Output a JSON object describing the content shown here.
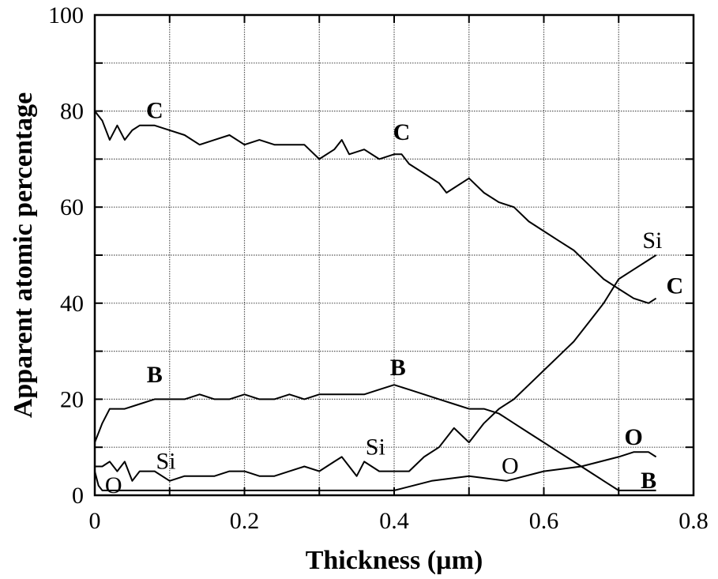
{
  "chart_data": {
    "type": "line",
    "xlabel": "Thickness (µm)",
    "ylabel": "Apparent atomic percentage",
    "xlim": [
      0,
      0.8
    ],
    "ylim": [
      0,
      100
    ],
    "xticks": [
      0,
      0.2,
      0.4,
      0.6,
      0.8
    ],
    "xtick_labels": [
      "0",
      "0.2",
      "0.4",
      "0.6",
      "0.8"
    ],
    "yticks": [
      0,
      20,
      40,
      60,
      80,
      100
    ],
    "ytick_labels": [
      "0",
      "20",
      "40",
      "60",
      "80",
      "100"
    ],
    "grid": true,
    "series": [
      {
        "name": "C",
        "x": [
          0,
          0.01,
          0.02,
          0.03,
          0.04,
          0.05,
          0.06,
          0.08,
          0.1,
          0.12,
          0.14,
          0.16,
          0.18,
          0.2,
          0.22,
          0.24,
          0.26,
          0.28,
          0.3,
          0.32,
          0.33,
          0.34,
          0.36,
          0.38,
          0.4,
          0.41,
          0.42,
          0.44,
          0.46,
          0.47,
          0.48,
          0.5,
          0.52,
          0.54,
          0.56,
          0.58,
          0.6,
          0.62,
          0.64,
          0.66,
          0.68,
          0.7,
          0.72,
          0.74,
          0.75
        ],
        "y": [
          80,
          78,
          74,
          77,
          74,
          76,
          77,
          77,
          76,
          75,
          73,
          74,
          75,
          73,
          74,
          73,
          73,
          73,
          70,
          72,
          74,
          71,
          72,
          70,
          71,
          71,
          69,
          67,
          65,
          63,
          64,
          66,
          63,
          61,
          60,
          57,
          55,
          53,
          51,
          48,
          45,
          43,
          41,
          40,
          41
        ]
      },
      {
        "name": "B",
        "x": [
          0,
          0.01,
          0.02,
          0.04,
          0.06,
          0.08,
          0.1,
          0.12,
          0.14,
          0.16,
          0.18,
          0.2,
          0.22,
          0.24,
          0.26,
          0.28,
          0.3,
          0.32,
          0.34,
          0.36,
          0.38,
          0.4,
          0.42,
          0.44,
          0.46,
          0.48,
          0.5,
          0.52,
          0.54,
          0.56,
          0.58,
          0.6,
          0.62,
          0.64,
          0.66,
          0.68,
          0.7,
          0.72,
          0.74,
          0.75
        ],
        "y": [
          11,
          15,
          18,
          18,
          19,
          20,
          20,
          20,
          21,
          20,
          20,
          21,
          20,
          20,
          21,
          20,
          21,
          21,
          21,
          21,
          22,
          23,
          22,
          21,
          20,
          19,
          18,
          18,
          17,
          15,
          13,
          11,
          9,
          7,
          5,
          3,
          1,
          1,
          1,
          1
        ]
      },
      {
        "name": "Si",
        "x": [
          0,
          0.01,
          0.02,
          0.03,
          0.04,
          0.05,
          0.06,
          0.08,
          0.1,
          0.12,
          0.14,
          0.16,
          0.18,
          0.2,
          0.22,
          0.24,
          0.26,
          0.28,
          0.3,
          0.32,
          0.33,
          0.34,
          0.35,
          0.36,
          0.38,
          0.4,
          0.42,
          0.44,
          0.46,
          0.48,
          0.5,
          0.52,
          0.54,
          0.56,
          0.58,
          0.6,
          0.62,
          0.64,
          0.66,
          0.68,
          0.7,
          0.72,
          0.74,
          0.75
        ],
        "y": [
          6,
          6,
          7,
          5,
          7,
          3,
          5,
          5,
          3,
          4,
          4,
          4,
          5,
          5,
          4,
          4,
          5,
          6,
          5,
          7,
          8,
          6,
          4,
          7,
          5,
          5,
          5,
          8,
          10,
          14,
          11,
          15,
          18,
          20,
          23,
          26,
          29,
          32,
          36,
          40,
          45,
          47,
          49,
          50
        ]
      },
      {
        "name": "O",
        "x": [
          0,
          0.005,
          0.01,
          0.02,
          0.04,
          0.06,
          0.1,
          0.15,
          0.2,
          0.25,
          0.3,
          0.35,
          0.4,
          0.45,
          0.5,
          0.55,
          0.6,
          0.65,
          0.7,
          0.72,
          0.74,
          0.75
        ],
        "y": [
          5,
          2,
          1,
          1,
          1,
          1,
          1,
          1,
          1,
          1,
          1,
          1,
          1,
          3,
          4,
          3,
          5,
          6,
          8,
          9,
          9,
          8
        ]
      }
    ],
    "annotations": [
      {
        "text": "C",
        "x": 0.08,
        "y": 78.5,
        "bold": true
      },
      {
        "text": "C",
        "x": 0.41,
        "y": 74,
        "bold": true
      },
      {
        "text": "C",
        "x": 0.775,
        "y": 42,
        "bold": true
      },
      {
        "text": "Si",
        "x": 0.745,
        "y": 51.5,
        "bold": false
      },
      {
        "text": "B",
        "x": 0.08,
        "y": 23.5,
        "bold": true
      },
      {
        "text": "B",
        "x": 0.405,
        "y": 25,
        "bold": true
      },
      {
        "text": "B",
        "x": 0.74,
        "y": 1.5,
        "bold": true
      },
      {
        "text": "Si",
        "x": 0.095,
        "y": 5.5,
        "bold": false
      },
      {
        "text": "Si",
        "x": 0.375,
        "y": 8.5,
        "bold": false
      },
      {
        "text": "O",
        "x": 0.025,
        "y": 0.5,
        "bold": false
      },
      {
        "text": "O",
        "x": 0.555,
        "y": 4.5,
        "bold": false
      },
      {
        "text": "O",
        "x": 0.72,
        "y": 10.5,
        "bold": true
      }
    ]
  }
}
